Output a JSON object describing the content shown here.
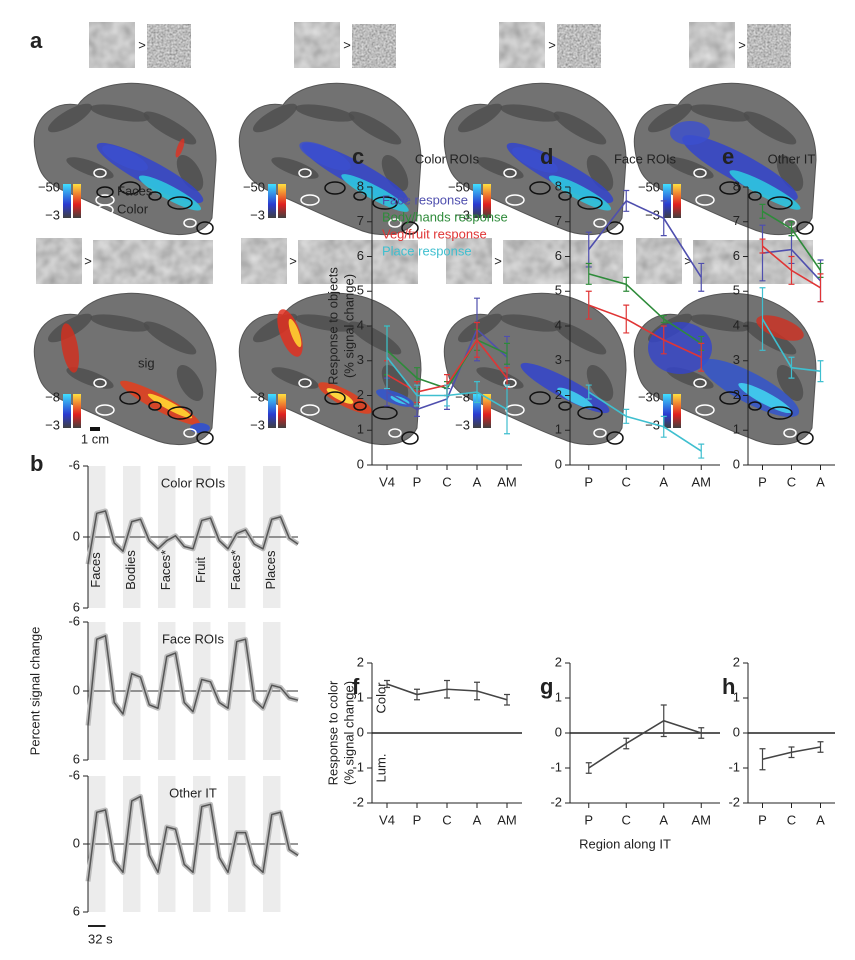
{
  "panel_a": {
    "label": "a",
    "gt": ">",
    "legend": [
      "Faces",
      "Color"
    ],
    "annotation": "sig",
    "scale_bar": "1 cm",
    "colorbars": [
      {
        "top": "−50",
        "bottom": "−3"
      },
      {
        "top": "−50",
        "bottom": "−3"
      },
      {
        "top": "−50",
        "bottom": "−3"
      },
      {
        "top": "−50",
        "bottom": "−3"
      },
      {
        "top": "−8",
        "bottom": "−3"
      },
      {
        "top": "−8",
        "bottom": "−3"
      },
      {
        "top": "−8",
        "bottom": "−3"
      },
      {
        "top": "−30",
        "bottom": "−3"
      }
    ]
  },
  "chart_data": [
    {
      "type": "line",
      "panel_label": "b",
      "title": "Color ROIs",
      "color": "#555555",
      "x": [
        0,
        16,
        32,
        48,
        64,
        80,
        96,
        112,
        128,
        144,
        160,
        176,
        192,
        208,
        224,
        240,
        256,
        272,
        288,
        304,
        320,
        336,
        352,
        368,
        384
      ],
      "values": [
        2.3,
        -2.0,
        -2.2,
        0.5,
        1.2,
        -1.3,
        -1.5,
        0.3,
        1.0,
        0.3,
        -0.1,
        0.8,
        1.0,
        -1.4,
        -1.6,
        0.3,
        1.0,
        -0.3,
        -0.6,
        0.6,
        1.0,
        -1.5,
        -1.7,
        0.1,
        0.6
      ],
      "xlim": [
        0,
        384
      ],
      "ylim": [
        -6,
        6
      ],
      "yticks": [
        -6,
        0,
        6
      ],
      "y_inverted": true,
      "zero_line": true,
      "blocks": [
        {
          "label": "Faces",
          "start": 0,
          "end": 32
        },
        {
          "label": "Bodies",
          "start": 64,
          "end": 96
        },
        {
          "label": "Faces*",
          "start": 128,
          "end": 160
        },
        {
          "label": "Fruit",
          "start": 192,
          "end": 224
        },
        {
          "label": "Faces*",
          "start": 256,
          "end": 288
        },
        {
          "label": "Places",
          "start": 320,
          "end": 352
        }
      ]
    },
    {
      "type": "line",
      "title": "Face ROIs",
      "ylabel": "Percent signal change",
      "color": "#555555",
      "x": [
        0,
        16,
        32,
        48,
        64,
        80,
        96,
        112,
        128,
        144,
        160,
        176,
        192,
        208,
        224,
        240,
        256,
        272,
        288,
        304,
        320,
        336,
        352,
        368,
        384
      ],
      "values": [
        3.0,
        -4.5,
        -4.8,
        1.0,
        2.0,
        -1.5,
        -1.2,
        1.2,
        1.5,
        -3.0,
        -3.3,
        1.0,
        1.8,
        -1.0,
        -0.8,
        1.0,
        1.5,
        -4.3,
        -4.5,
        0.8,
        1.5,
        -0.5,
        -0.3,
        0.6,
        0.8
      ],
      "xlim": [
        0,
        384
      ],
      "ylim": [
        -6,
        6
      ],
      "yticks": [
        -6,
        0,
        6
      ],
      "y_inverted": true,
      "zero_line": true
    },
    {
      "type": "line",
      "title": "Other IT",
      "color": "#555555",
      "scale_bar": {
        "label": "32 s",
        "length": 32
      },
      "x": [
        0,
        16,
        32,
        48,
        64,
        80,
        96,
        112,
        128,
        144,
        160,
        176,
        192,
        208,
        224,
        240,
        256,
        272,
        288,
        304,
        320,
        336,
        352,
        368,
        384
      ],
      "values": [
        3.3,
        -2.8,
        -3.0,
        1.5,
        2.5,
        -3.8,
        -4.2,
        1.0,
        2.5,
        -1.5,
        -1.3,
        1.8,
        2.5,
        -3.3,
        -3.5,
        1.2,
        2.5,
        -1.0,
        -1.0,
        1.8,
        2.5,
        -2.6,
        -2.8,
        0.5,
        1.0
      ],
      "xlim": [
        0,
        384
      ],
      "ylim": [
        -6,
        6
      ],
      "yticks": [
        -6,
        0,
        6
      ],
      "y_inverted": true,
      "zero_line": true
    },
    {
      "type": "errorbar",
      "panel_label": "c",
      "title": "Color ROIs",
      "ylabel": [
        "Response to objects",
        "(% signal change)"
      ],
      "categories": [
        "V4",
        "P",
        "C",
        "A",
        "AM"
      ],
      "ylim": [
        0,
        8
      ],
      "yticks": [
        0,
        1,
        2,
        3,
        4,
        5,
        6,
        7,
        8
      ],
      "legend": true,
      "series": [
        {
          "name": "Face response",
          "color": "#4f4fae",
          "values": [
            2.1,
            1.6,
            1.9,
            3.9,
            3.1
          ],
          "errors": [
            0.4,
            0.2,
            0.3,
            0.9,
            0.6
          ]
        },
        {
          "name": "Body/hands response",
          "color": "#2e8b3a",
          "values": [
            3.3,
            2.5,
            2.2,
            3.6,
            3.2
          ],
          "errors": [
            0.7,
            0.3,
            0.2,
            0.3,
            0.3
          ]
        },
        {
          "name": "Veg/fruit response",
          "color": "#e03535",
          "values": [
            2.6,
            2.1,
            2.3,
            3.6,
            2.5
          ],
          "errors": [
            0.4,
            0.3,
            0.3,
            0.5,
            0.3
          ]
        },
        {
          "name": "Place response",
          "color": "#3fbfcf",
          "values": [
            3.1,
            2.0,
            2.0,
            2.1,
            1.6
          ],
          "errors": [
            0.9,
            0.3,
            0.3,
            0.3,
            0.7
          ]
        }
      ]
    },
    {
      "type": "errorbar",
      "panel_label": "d",
      "title": "Face ROIs",
      "categories": [
        "P",
        "C",
        "A",
        "AM"
      ],
      "ylim": [
        0,
        8
      ],
      "yticks": [
        0,
        1,
        2,
        3,
        4,
        5,
        6,
        7,
        8
      ],
      "series": [
        {
          "color": "#4f4fae",
          "values": [
            6.2,
            7.6,
            7.1,
            5.4
          ],
          "errors": [
            0.5,
            0.3,
            0.5,
            0.4
          ]
        },
        {
          "color": "#2e8b3a",
          "values": [
            5.5,
            5.2,
            4.2,
            3.5
          ],
          "errors": [
            0.3,
            0.2,
            0.1,
            0.2
          ]
        },
        {
          "color": "#e03535",
          "values": [
            4.6,
            4.2,
            3.6,
            3.1
          ],
          "errors": [
            0.4,
            0.4,
            0.4,
            0.4
          ]
        },
        {
          "color": "#3fbfcf",
          "values": [
            2.1,
            1.4,
            1.1,
            0.4
          ],
          "errors": [
            0.2,
            0.2,
            0.3,
            0.2
          ]
        }
      ]
    },
    {
      "type": "errorbar",
      "panel_label": "e",
      "title": "Other IT",
      "categories": [
        "P",
        "C",
        "A"
      ],
      "ylim": [
        0,
        8
      ],
      "yticks": [
        0,
        1,
        2,
        3,
        4,
        5,
        6,
        7,
        8
      ],
      "series": [
        {
          "color": "#4f4fae",
          "values": [
            6.1,
            6.2,
            5.3
          ],
          "errors": [
            0.8,
            0.4,
            0.6
          ]
        },
        {
          "color": "#2e8b3a",
          "values": [
            7.3,
            6.8,
            5.6
          ],
          "errors": [
            0.2,
            0.2,
            0.2
          ]
        },
        {
          "color": "#e03535",
          "values": [
            6.3,
            5.6,
            5.1
          ],
          "errors": [
            0.2,
            0.4,
            0.4
          ]
        },
        {
          "color": "#3fbfcf",
          "values": [
            4.2,
            2.8,
            2.7
          ],
          "errors": [
            0.9,
            0.3,
            0.3
          ]
        }
      ]
    },
    {
      "type": "errorbar",
      "panel_label": "f",
      "ylabel": [
        "Response to color",
        "(% signal change)"
      ],
      "annotations": [
        "Color",
        "Lum."
      ],
      "categories": [
        "V4",
        "P",
        "C",
        "A",
        "AM"
      ],
      "ylim": [
        -2,
        2
      ],
      "yticks": [
        -2,
        -1,
        0,
        1,
        2
      ],
      "zero_line": true,
      "series": [
        {
          "color": "#444444",
          "values": [
            1.4,
            1.1,
            1.25,
            1.2,
            0.95
          ],
          "errors": [
            0.1,
            0.15,
            0.25,
            0.25,
            0.15
          ]
        }
      ]
    },
    {
      "type": "errorbar",
      "panel_label": "g",
      "xlabel": "Region along IT",
      "categories": [
        "P",
        "C",
        "A",
        "AM"
      ],
      "ylim": [
        -2,
        2
      ],
      "yticks": [
        -2,
        -1,
        0,
        1,
        2
      ],
      "zero_line": true,
      "series": [
        {
          "color": "#444444",
          "values": [
            -1.0,
            -0.3,
            0.35,
            0.0
          ],
          "errors": [
            0.15,
            0.15,
            0.45,
            0.15
          ]
        }
      ]
    },
    {
      "type": "errorbar",
      "panel_label": "h",
      "categories": [
        "P",
        "C",
        "A"
      ],
      "ylim": [
        -2,
        2
      ],
      "yticks": [
        -2,
        -1,
        0,
        1,
        2
      ],
      "zero_line": true,
      "series": [
        {
          "color": "#444444",
          "values": [
            -0.75,
            -0.55,
            -0.4
          ],
          "errors": [
            0.3,
            0.15,
            0.15
          ]
        }
      ]
    }
  ]
}
